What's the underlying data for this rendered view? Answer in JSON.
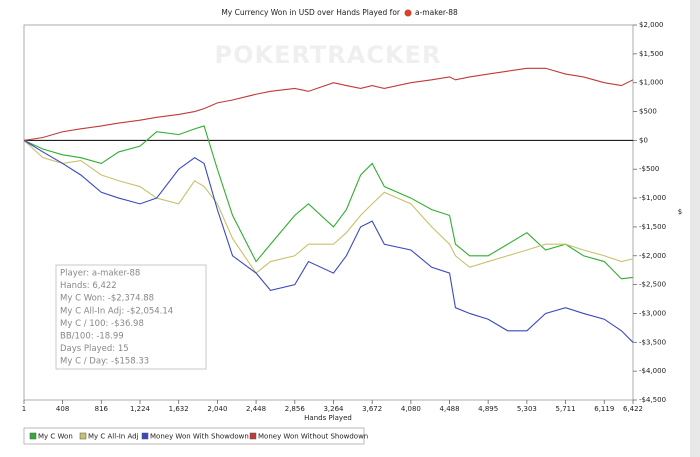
{
  "chart_data": {
    "type": "line",
    "title": "My Currency Won in USD over Hands Played for",
    "player": "a-maker-88",
    "watermark": "POKERTRACKER",
    "x_label": "Hands Played",
    "y_label": "$",
    "x": [
      1,
      200,
      408,
      600,
      816,
      1000,
      1224,
      1400,
      1632,
      1800,
      1900,
      2040,
      2200,
      2448,
      2600,
      2856,
      3000,
      3264,
      3400,
      3550,
      3672,
      3800,
      4080,
      4300,
      4488,
      4550,
      4700,
      4895,
      5100,
      5303,
      5500,
      5711,
      5900,
      6119,
      6300,
      6422
    ],
    "series": [
      {
        "name": "My C Won",
        "color": "#2fae2f",
        "values": [
          0,
          -150,
          -250,
          -300,
          -400,
          -200,
          -100,
          150,
          100,
          200,
          250,
          -500,
          -1300,
          -2100,
          -1800,
          -1300,
          -1100,
          -1500,
          -1200,
          -600,
          -400,
          -800,
          -1000,
          -1200,
          -1300,
          -1800,
          -2000,
          -2000,
          -1800,
          -1600,
          -1900,
          -1800,
          -2000,
          -2100,
          -2400,
          -2374.88
        ]
      },
      {
        "name": "My C All-In Adj",
        "color": "#c8c26a",
        "values": [
          0,
          -300,
          -400,
          -350,
          -600,
          -700,
          -800,
          -1000,
          -1100,
          -700,
          -800,
          -1100,
          -1700,
          -2300,
          -2100,
          -2000,
          -1800,
          -1800,
          -1600,
          -1300,
          -1100,
          -900,
          -1100,
          -1500,
          -1800,
          -2000,
          -2200,
          -2100,
          -2000,
          -1900,
          -1800,
          -1800,
          -1900,
          -2000,
          -2100,
          -2054.14
        ]
      },
      {
        "name": "Money Won With Showdown",
        "color": "#3a49c0",
        "values": [
          0,
          -200,
          -400,
          -600,
          -900,
          -1000,
          -1100,
          -1000,
          -500,
          -300,
          -400,
          -1200,
          -2000,
          -2300,
          -2600,
          -2500,
          -2100,
          -2300,
          -2000,
          -1500,
          -1400,
          -1800,
          -1900,
          -2200,
          -2300,
          -2900,
          -3000,
          -3100,
          -3300,
          -3300,
          -3000,
          -2900,
          -3000,
          -3100,
          -3300,
          -3500
        ]
      },
      {
        "name": "Money Won Without Showdown",
        "color": "#c03a3a",
        "values": [
          0,
          50,
          150,
          200,
          250,
          300,
          350,
          400,
          450,
          500,
          550,
          650,
          700,
          800,
          850,
          900,
          850,
          1000,
          950,
          900,
          950,
          900,
          1000,
          1050,
          1100,
          1050,
          1100,
          1150,
          1200,
          1250,
          1250,
          1150,
          1100,
          1000,
          950,
          1050
        ]
      }
    ],
    "xlim": [
      1,
      6422
    ],
    "xticks": [
      1,
      408,
      816,
      {
        "value": 1224,
        "label": "1,224"
      },
      {
        "value": 1632,
        "label": "1,632"
      },
      {
        "value": 2040,
        "label": "2,040"
      },
      {
        "value": 2448,
        "label": "2,448"
      },
      {
        "value": 2856,
        "label": "2,856"
      },
      {
        "value": 3264,
        "label": "3,264"
      },
      {
        "value": 3672,
        "label": "3,672"
      },
      {
        "value": 4080,
        "label": "4,080"
      },
      {
        "value": 4488,
        "label": "4,488"
      },
      {
        "value": 4895,
        "label": "4,895"
      },
      {
        "value": 5303,
        "label": "5,303"
      },
      {
        "value": 5711,
        "label": "5,711"
      },
      {
        "value": 6119,
        "label": "6,119"
      },
      {
        "value": 6422,
        "label": "6,422"
      }
    ],
    "ylim": [
      -4500,
      2000
    ],
    "yticks": [
      {
        "value": 2000,
        "label": "$2,000"
      },
      {
        "value": 1500,
        "label": "$1,500"
      },
      {
        "value": 1000,
        "label": "$1,000"
      },
      {
        "value": 500,
        "label": "$500"
      },
      {
        "value": 0,
        "label": "$0"
      },
      {
        "value": -500,
        "label": "-$500"
      },
      {
        "value": -1000,
        "label": "-$1,000"
      },
      {
        "value": -1500,
        "label": "-$1,500"
      },
      {
        "value": -2000,
        "label": "-$2,000"
      },
      {
        "value": -2500,
        "label": "-$2,500"
      },
      {
        "value": -3000,
        "label": "-$3,000"
      },
      {
        "value": -3500,
        "label": "-$3,500"
      },
      {
        "value": -4000,
        "label": "-$4,000"
      },
      {
        "value": -4500,
        "label": "-$4,500"
      }
    ],
    "grid": false,
    "legend": "bottom",
    "stats": [
      "Player: a-maker-88",
      "Hands: 6,422",
      "My C Won: -$2,374.88",
      "My C All-In Adj: -$2,054.14",
      "My C / 100: -$36.98",
      "BB/100: -18.99",
      "Days Played: 15",
      "My C / Day: -$158.33"
    ]
  }
}
